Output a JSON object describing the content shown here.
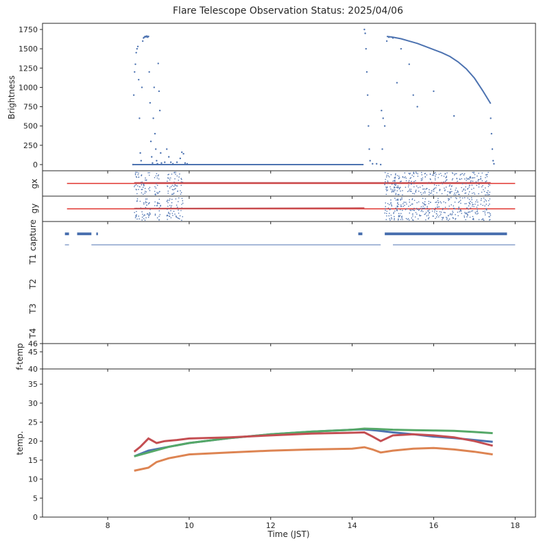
{
  "chart_data": {
    "type": "scatter",
    "title": "Flare Telescope Observation Status: 2025/04/06",
    "xlabel": "Time (JST)",
    "xlim": [
      6.4,
      18.5
    ],
    "x_ticks": [
      8,
      10,
      12,
      14,
      16,
      18
    ],
    "colors": {
      "blue": "#4c72b0",
      "orange": "#dd8452",
      "green": "#55a868",
      "red": "#c44e52",
      "redline": "#e0302a"
    },
    "panels": [
      {
        "id": "brightness",
        "ylabel": "Brightness",
        "ylim": [
          -80,
          1830
        ],
        "y_ticks": [
          0,
          250,
          500,
          750,
          1000,
          1250,
          1500,
          1750
        ],
        "series": [
          {
            "color": "blue",
            "kind": "scatter",
            "points": [
              [
                8.62,
                0
              ],
              [
                8.64,
                900
              ],
              [
                8.66,
                1200
              ],
              [
                8.68,
                1300
              ],
              [
                8.7,
                1450
              ],
              [
                8.72,
                1500
              ],
              [
                8.74,
                1530
              ],
              [
                8.76,
                1100
              ],
              [
                8.78,
                600
              ],
              [
                8.8,
                150
              ],
              [
                8.82,
                50
              ],
              [
                8.84,
                1000
              ],
              [
                8.86,
                1600
              ],
              [
                8.88,
                1640
              ],
              [
                8.9,
                1650
              ],
              [
                8.92,
                1660
              ],
              [
                8.94,
                1655
              ],
              [
                8.96,
                1665
              ],
              [
                8.98,
                1650
              ],
              [
                9.0,
                1660
              ],
              [
                9.02,
                1200
              ],
              [
                9.04,
                800
              ],
              [
                9.06,
                300
              ],
              [
                9.08,
                100
              ],
              [
                9.1,
                20
              ],
              [
                9.12,
                600
              ],
              [
                9.14,
                1000
              ],
              [
                9.16,
                400
              ],
              [
                9.18,
                200
              ],
              [
                9.2,
                50
              ],
              [
                9.22,
                10
              ],
              [
                9.24,
                1310
              ],
              [
                9.26,
                950
              ],
              [
                9.28,
                700
              ],
              [
                9.3,
                150
              ],
              [
                9.32,
                20
              ],
              [
                9.4,
                30
              ],
              [
                9.45,
                200
              ],
              [
                9.5,
                100
              ],
              [
                9.55,
                30
              ],
              [
                9.6,
                10
              ],
              [
                9.7,
                30
              ],
              [
                9.78,
                80
              ],
              [
                9.82,
                160
              ],
              [
                9.86,
                140
              ],
              [
                9.9,
                20
              ],
              [
                9.95,
                10
              ]
            ]
          },
          {
            "color": "blue",
            "kind": "line",
            "points": [
              [
                8.62,
                0
              ],
              [
                14.28,
                0
              ]
            ]
          },
          {
            "color": "blue",
            "kind": "scatter",
            "points": [
              [
                14.3,
                1750
              ],
              [
                14.32,
                1700
              ],
              [
                14.34,
                1500
              ],
              [
                14.36,
                1200
              ],
              [
                14.38,
                900
              ],
              [
                14.4,
                500
              ],
              [
                14.42,
                200
              ],
              [
                14.44,
                50
              ],
              [
                14.5,
                10
              ],
              [
                14.6,
                10
              ],
              [
                14.7,
                0
              ],
              [
                14.72,
                700
              ],
              [
                14.74,
                200
              ],
              [
                14.76,
                600
              ],
              [
                14.8,
                500
              ],
              [
                14.85,
                1600
              ],
              [
                14.9,
                1650
              ],
              [
                15.0,
                1640
              ],
              [
                15.1,
                1060
              ],
              [
                15.2,
                1500
              ],
              [
                15.4,
                1300
              ],
              [
                15.5,
                900
              ],
              [
                15.6,
                750
              ],
              [
                16.0,
                950
              ],
              [
                16.5,
                630
              ],
              [
                17.4,
                600
              ],
              [
                17.42,
                400
              ],
              [
                17.44,
                200
              ],
              [
                17.46,
                50
              ],
              [
                17.48,
                10
              ]
            ]
          },
          {
            "color": "blue",
            "kind": "line",
            "points": [
              [
                14.85,
                1660
              ],
              [
                15.0,
                1650
              ],
              [
                15.2,
                1630
              ],
              [
                15.4,
                1600
              ],
              [
                15.6,
                1570
              ],
              [
                15.8,
                1530
              ],
              [
                16.0,
                1490
              ],
              [
                16.2,
                1450
              ],
              [
                16.4,
                1400
              ],
              [
                16.6,
                1330
              ],
              [
                16.8,
                1240
              ],
              [
                17.0,
                1120
              ],
              [
                17.2,
                960
              ],
              [
                17.4,
                790
              ]
            ]
          }
        ]
      },
      {
        "id": "gx",
        "ylabel": "gx",
        "series": [
          {
            "color": "redline",
            "kind": "line",
            "points": [
              [
                7.0,
                0
              ],
              [
                18.0,
                0
              ]
            ]
          },
          {
            "color": "blue",
            "kind": "scatter-band",
            "ranges": [
              [
                8.65,
                9.05
              ],
              [
                9.15,
                9.3
              ],
              [
                9.45,
                9.85
              ],
              [
                14.8,
                17.4
              ]
            ],
            "spread": 0.9
          },
          {
            "color": "red",
            "kind": "line",
            "points": [
              [
                8.65,
                0.05
              ],
              [
                17.4,
                0.05
              ]
            ]
          }
        ]
      },
      {
        "id": "gy",
        "ylabel": "gy",
        "series": [
          {
            "color": "redline",
            "kind": "line",
            "points": [
              [
                7.0,
                0
              ],
              [
                18.0,
                0
              ]
            ]
          },
          {
            "color": "blue",
            "kind": "scatter-band",
            "ranges": [
              [
                8.65,
                9.05
              ],
              [
                9.15,
                9.3
              ],
              [
                9.45,
                9.85
              ],
              [
                14.8,
                17.4
              ]
            ],
            "spread": 0.9
          },
          {
            "color": "red",
            "kind": "line",
            "points": [
              [
                8.65,
                0.02
              ],
              [
                14.3,
                0.06
              ]
            ]
          }
        ]
      },
      {
        "id": "status",
        "ylabels": [
          "capture",
          "T1",
          "T2",
          "T3",
          "T4"
        ],
        "series": [
          {
            "color": "blue",
            "kind": "segments",
            "row": 0,
            "points": [
              [
                6.95,
                7.05
              ],
              [
                7.25,
                7.6
              ],
              [
                7.72,
                7.76
              ],
              [
                14.15,
                14.25
              ],
              [
                14.8,
                17.8
              ]
            ]
          },
          {
            "color": "blue",
            "kind": "thin-line",
            "row": 1,
            "points": [
              [
                6.95,
                7.05
              ],
              [
                7.6,
                14.7
              ],
              [
                15.0,
                18.0
              ]
            ]
          }
        ]
      },
      {
        "id": "ftemp",
        "ylabel": "f-temp",
        "ylim": [
          40,
          46
        ],
        "y_ticks": [
          45,
          46,
          40
        ]
      },
      {
        "id": "temp",
        "ylabel": "temp.",
        "ylim": [
          0,
          39
        ],
        "y_ticks": [
          0,
          5,
          10,
          15,
          20,
          25,
          30,
          35
        ],
        "series": [
          {
            "color": "blue",
            "kind": "line",
            "points": [
              [
                8.65,
                16.0
              ],
              [
                9.0,
                17.5
              ],
              [
                9.5,
                18.5
              ],
              [
                10.0,
                19.5
              ],
              [
                11.0,
                20.8
              ],
              [
                12.0,
                21.8
              ],
              [
                13.0,
                22.5
              ],
              [
                14.0,
                23.0
              ],
              [
                14.3,
                23.1
              ],
              [
                14.6,
                22.8
              ],
              [
                15.0,
                22.3
              ],
              [
                15.5,
                21.8
              ],
              [
                16.0,
                21.2
              ],
              [
                16.5,
                20.8
              ],
              [
                17.0,
                20.3
              ],
              [
                17.45,
                19.8
              ]
            ]
          },
          {
            "color": "green",
            "kind": "line",
            "points": [
              [
                8.65,
                16.0
              ],
              [
                9.0,
                17.0
              ],
              [
                9.5,
                18.5
              ],
              [
                10.0,
                19.5
              ],
              [
                11.0,
                20.8
              ],
              [
                12.0,
                21.8
              ],
              [
                13.0,
                22.5
              ],
              [
                14.0,
                23.0
              ],
              [
                14.3,
                23.3
              ],
              [
                14.6,
                23.2
              ],
              [
                15.0,
                23.0
              ],
              [
                15.5,
                22.9
              ],
              [
                16.0,
                22.8
              ],
              [
                16.5,
                22.7
              ],
              [
                17.0,
                22.4
              ],
              [
                17.45,
                22.1
              ]
            ]
          },
          {
            "color": "red",
            "kind": "line",
            "points": [
              [
                8.65,
                17.2
              ],
              [
                8.8,
                18.5
              ],
              [
                9.0,
                20.7
              ],
              [
                9.2,
                19.5
              ],
              [
                9.4,
                20.0
              ],
              [
                9.7,
                20.3
              ],
              [
                10.0,
                20.7
              ],
              [
                11.0,
                21.0
              ],
              [
                12.0,
                21.5
              ],
              [
                13.0,
                22.0
              ],
              [
                14.0,
                22.2
              ],
              [
                14.3,
                22.3
              ],
              [
                14.5,
                21.2
              ],
              [
                14.7,
                20.0
              ],
              [
                15.0,
                21.5
              ],
              [
                15.5,
                21.8
              ],
              [
                16.0,
                21.5
              ],
              [
                16.5,
                21.0
              ],
              [
                17.0,
                20.0
              ],
              [
                17.45,
                18.8
              ]
            ]
          },
          {
            "color": "orange",
            "kind": "line",
            "points": [
              [
                8.65,
                12.2
              ],
              [
                9.0,
                13.0
              ],
              [
                9.2,
                14.5
              ],
              [
                9.5,
                15.5
              ],
              [
                10.0,
                16.5
              ],
              [
                11.0,
                17.0
              ],
              [
                12.0,
                17.5
              ],
              [
                13.0,
                17.8
              ],
              [
                14.0,
                18.0
              ],
              [
                14.3,
                18.4
              ],
              [
                14.5,
                17.8
              ],
              [
                14.7,
                17.0
              ],
              [
                15.0,
                17.5
              ],
              [
                15.5,
                18.0
              ],
              [
                16.0,
                18.2
              ],
              [
                16.5,
                17.8
              ],
              [
                17.0,
                17.2
              ],
              [
                17.45,
                16.5
              ]
            ]
          }
        ]
      }
    ]
  }
}
